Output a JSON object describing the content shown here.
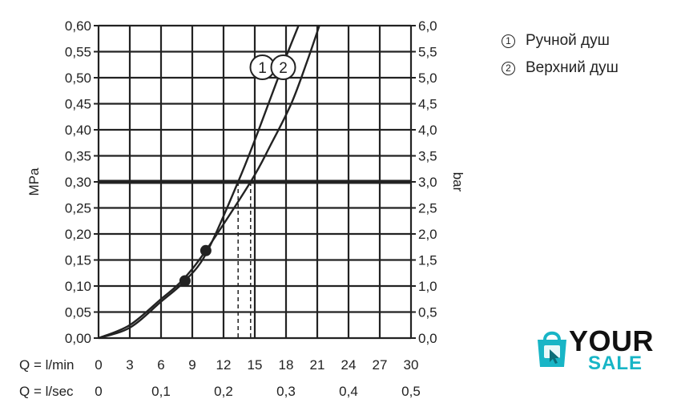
{
  "chart_data": {
    "type": "line",
    "ylabel_left": "MPa",
    "ylabel_right": "bar",
    "xlabel_lmin": "Q = l/min",
    "xlabel_lsec": "Q = l/sec",
    "y_ticks_left": [
      "0,00",
      "0,05",
      "0,10",
      "0,15",
      "0,20",
      "0,25",
      "0,30",
      "0,35",
      "0,40",
      "0,45",
      "0,50",
      "0,55",
      "0,60"
    ],
    "y_ticks_right": [
      "0,0",
      "0,5",
      "1,0",
      "1,5",
      "2,0",
      "2,5",
      "3,0",
      "3,5",
      "4,0",
      "4,5",
      "5,0",
      "5,5",
      "6,0"
    ],
    "x_ticks_lmin": [
      "0",
      "3",
      "6",
      "9",
      "12",
      "15",
      "18",
      "21",
      "24",
      "27",
      "30"
    ],
    "x_ticks_lsec": [
      "0",
      "0,1",
      "0,2",
      "0,3",
      "0,4",
      "0,5"
    ],
    "xlim": [
      0,
      30
    ],
    "ylim": [
      0,
      0.6
    ],
    "grid": true,
    "reference_pressure": 0.3,
    "series": [
      {
        "marker": "1",
        "x": [
          0,
          3,
          6,
          8.3,
          10.4,
          13.4,
          15,
          16.5,
          18,
          19.2
        ],
        "y": [
          0,
          0.02,
          0.07,
          0.11,
          0.165,
          0.3,
          0.38,
          0.46,
          0.54,
          0.6
        ],
        "dot": [
          8.3,
          0.11
        ]
      },
      {
        "marker": "2",
        "x": [
          0,
          3,
          6,
          8.0,
          10.3,
          14.6,
          16.5,
          18.5,
          20,
          21.2
        ],
        "y": [
          0,
          0.025,
          0.075,
          0.11,
          0.168,
          0.3,
          0.37,
          0.45,
          0.53,
          0.6
        ],
        "dot": [
          10.3,
          0.168
        ]
      }
    ]
  },
  "legend": {
    "items": [
      {
        "num": "1",
        "label": "Ручной душ"
      },
      {
        "num": "2",
        "label": "Верхний душ"
      }
    ]
  },
  "brand": {
    "word1": "YOUR",
    "word2": "SALE",
    "accent": "#18b5c6"
  }
}
